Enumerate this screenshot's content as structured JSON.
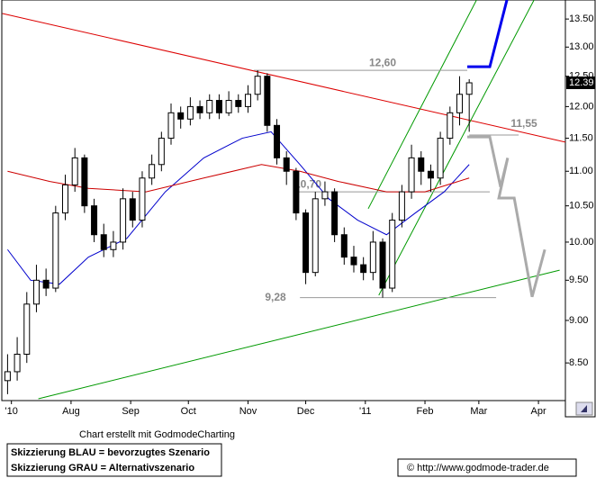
{
  "chart_data": {
    "type": "candlestick",
    "x": [
      -2,
      3,
      8,
      13,
      18,
      23,
      28,
      33,
      38,
      43,
      48,
      53,
      58,
      63,
      68,
      73,
      78,
      83,
      88,
      93,
      98,
      103,
      108,
      113,
      118,
      123,
      128,
      133,
      138,
      143,
      148,
      153,
      158,
      163,
      168,
      173,
      178,
      183,
      188,
      193,
      198,
      203,
      208,
      213,
      218,
      223,
      228,
      233,
      238
    ],
    "open": [
      8.3,
      8.4,
      8.6,
      9.2,
      9.5,
      9.4,
      10.4,
      10.8,
      11.2,
      10.5,
      10.1,
      9.9,
      10.0,
      10.6,
      10.3,
      10.9,
      11.1,
      11.5,
      11.9,
      11.8,
      12.0,
      11.9,
      12.1,
      11.9,
      12.1,
      12.0,
      12.2,
      12.5,
      11.7,
      11.2,
      11.0,
      10.4,
      9.6,
      10.6,
      10.7,
      10.1,
      9.8,
      9.7,
      9.6,
      10.0,
      9.4,
      10.3,
      10.7,
      11.2,
      11.0,
      10.9,
      11.5,
      11.9,
      12.2
    ],
    "high": [
      8.6,
      8.8,
      9.35,
      9.7,
      9.65,
      10.5,
      10.95,
      11.35,
      11.25,
      10.6,
      10.25,
      10.15,
      10.75,
      10.7,
      11.0,
      11.25,
      11.6,
      12.05,
      12.0,
      12.15,
      12.1,
      12.2,
      12.2,
      12.25,
      12.2,
      12.35,
      12.6,
      12.55,
      11.8,
      11.3,
      11.05,
      10.45,
      10.7,
      10.85,
      10.75,
      10.2,
      9.95,
      9.8,
      10.15,
      10.05,
      10.4,
      10.8,
      11.4,
      11.3,
      11.1,
      11.6,
      12.0,
      12.5,
      12.45
    ],
    "low": [
      8.15,
      8.3,
      8.5,
      9.1,
      9.3,
      9.35,
      10.3,
      10.7,
      10.4,
      10.0,
      9.8,
      9.8,
      9.9,
      10.2,
      10.2,
      10.8,
      11.0,
      11.4,
      11.65,
      11.7,
      11.8,
      11.8,
      11.8,
      11.85,
      11.9,
      11.9,
      12.1,
      11.6,
      11.1,
      10.8,
      10.3,
      9.45,
      9.55,
      10.5,
      10.0,
      9.7,
      9.6,
      9.5,
      9.5,
      9.28,
      9.35,
      10.2,
      10.6,
      10.8,
      10.7,
      10.8,
      11.4,
      11.7,
      11.6
    ],
    "close": [
      8.4,
      8.6,
      9.2,
      9.5,
      9.4,
      10.4,
      10.8,
      11.2,
      10.5,
      10.1,
      9.9,
      10.0,
      10.6,
      10.3,
      10.9,
      11.1,
      11.5,
      11.9,
      11.8,
      12.0,
      11.9,
      12.1,
      11.9,
      12.1,
      12.0,
      12.2,
      12.5,
      11.7,
      11.2,
      11.0,
      10.4,
      9.6,
      10.6,
      10.7,
      10.1,
      9.8,
      9.7,
      9.6,
      10.0,
      9.4,
      10.3,
      10.7,
      11.2,
      11.0,
      10.9,
      11.5,
      11.9,
      12.2,
      12.39
    ],
    "color_up": "#ffffff",
    "color_down": "#000000",
    "log_scale": true,
    "xlim": [
      -5,
      288
    ],
    "ylim": [
      8.08,
      13.85
    ],
    "xticks": [
      {
        "value": 0,
        "label": "'10"
      },
      {
        "value": 31,
        "label": "Aug"
      },
      {
        "value": 62,
        "label": "Sep"
      },
      {
        "value": 92,
        "label": "Oct"
      },
      {
        "value": 123,
        "label": "Nov"
      },
      {
        "value": 153,
        "label": "Dec"
      },
      {
        "value": 184,
        "label": "'11"
      },
      {
        "value": 215,
        "label": "Feb"
      },
      {
        "value": 243,
        "label": "Mar"
      },
      {
        "value": 274,
        "label": "Apr"
      }
    ],
    "yticks": [
      {
        "value": 8.5,
        "label": "8.50"
      },
      {
        "value": 9,
        "label": "9.00"
      },
      {
        "value": 9.5,
        "label": "9.50"
      },
      {
        "value": 10,
        "label": "10.00"
      },
      {
        "value": 10.5,
        "label": "10.50"
      },
      {
        "value": 11,
        "label": "11.00"
      },
      {
        "value": 11.5,
        "label": "11.50"
      },
      {
        "value": 12,
        "label": "12.00"
      },
      {
        "value": 12.5,
        "label": "12.50"
      },
      {
        "value": 13,
        "label": "13.00"
      },
      {
        "value": 13.5,
        "label": "13.50"
      }
    ],
    "last_price": 12.39,
    "moving_averages": [
      {
        "color": "#0000cc",
        "x": [
          -2,
          10,
          25,
          40,
          60,
          80,
          100,
          120,
          135,
          150,
          165,
          180,
          195,
          210,
          225,
          238
        ],
        "values": [
          9.9,
          9.5,
          9.45,
          9.8,
          10.05,
          10.7,
          11.2,
          11.5,
          11.6,
          11.1,
          10.6,
          10.3,
          10.1,
          10.4,
          10.7,
          11.1
        ]
      },
      {
        "color": "#cc0000",
        "x": [
          -2,
          20,
          40,
          70,
          100,
          130,
          150,
          170,
          195,
          215,
          238
        ],
        "values": [
          11.0,
          10.85,
          10.75,
          10.7,
          10.9,
          11.1,
          11.0,
          10.85,
          10.7,
          10.7,
          10.9
        ]
      }
    ],
    "trendlines": [
      {
        "color": "#dd0000",
        "x": [
          -4.7,
          288
        ],
        "values": [
          13.6,
          11.44
        ]
      },
      {
        "color": "#009900",
        "x": [
          14,
          285
        ],
        "values": [
          8.1,
          9.63
        ]
      },
      {
        "color": "#009900",
        "x": [
          185.5,
          241.8
        ],
        "values": [
          10.46,
          13.85
        ]
      },
      {
        "color": "#009900",
        "x": [
          191,
          271.7
        ],
        "values": [
          9.31,
          13.85
        ]
      }
    ],
    "levels": {
      "values": [
        12.6,
        10.7,
        11.55,
        9.28
      ],
      "value_labels": [
        "12,60",
        "10,70",
        "11,55",
        "9,28"
      ],
      "x_start": [
        126,
        147.5,
        238,
        150
      ],
      "x_end": [
        237,
        248.7,
        263.7,
        252
      ]
    },
    "scenarios": [
      {
        "color": "#0000ee",
        "x": [
          237,
          248.7,
          257.6
        ],
        "values": [
          12.66,
          12.66,
          13.85
        ]
      },
      {
        "color": "#aaaaaa",
        "x": [
          237,
          248.7,
          254.3,
          258,
          253.4,
          261.4,
          270.7,
          277.3
        ],
        "values": [
          11.52,
          11.52,
          10.77,
          11.2,
          10.61,
          10.61,
          9.29,
          9.9
        ]
      }
    ]
  },
  "credit": "Chart erstellt mit GodmodeCharting",
  "legend_lines": [
    "Skizzierung BLAU = bevorzugtes Szenario",
    "Skizzierung GRAU = Alternativszenario"
  ],
  "copyright": "© http://www.godmode-trader.de"
}
